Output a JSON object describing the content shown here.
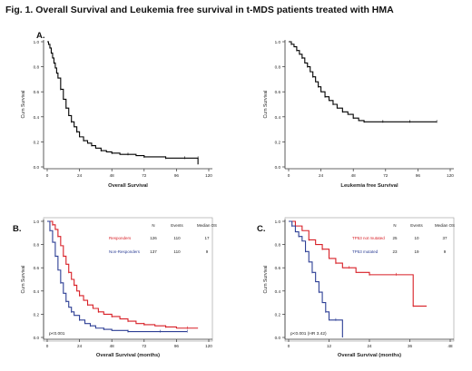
{
  "figure": {
    "title": "Fig. 1. Overall Survival and Leukemia free survival in t-MDS patients treated with HMA",
    "panel_letters": [
      "A.",
      "B.",
      "C."
    ]
  },
  "chart_data": [
    {
      "id": "A-left",
      "type": "line",
      "ylabel": "Cum Survival",
      "xlabel": "Overall Survival",
      "xlim": [
        0,
        120
      ],
      "ylim": [
        0,
        1.0
      ],
      "xticks": [
        0,
        24,
        48,
        72,
        96,
        120
      ],
      "yticks": [
        0.0,
        0.2,
        0.4,
        0.6,
        0.8,
        1.0
      ],
      "series": [
        {
          "color": "#000000",
          "x": [
            0,
            1,
            2,
            3,
            4,
            5,
            6,
            7,
            8,
            10,
            12,
            14,
            16,
            18,
            20,
            22,
            24,
            27,
            30,
            33,
            36,
            40,
            44,
            48,
            54,
            60,
            66,
            72,
            80,
            88,
            96,
            102,
            106,
            112,
            112
          ],
          "y": [
            1.0,
            0.98,
            0.95,
            0.91,
            0.87,
            0.83,
            0.79,
            0.75,
            0.71,
            0.62,
            0.54,
            0.47,
            0.41,
            0.36,
            0.32,
            0.28,
            0.24,
            0.21,
            0.19,
            0.17,
            0.15,
            0.13,
            0.12,
            0.11,
            0.1,
            0.1,
            0.09,
            0.08,
            0.08,
            0.07,
            0.07,
            0.07,
            0.07,
            0.07,
            0.02
          ]
        }
      ]
    },
    {
      "id": "A-right",
      "type": "line",
      "ylabel": "Cum Survival",
      "xlabel": "Leukemia free Survival",
      "xlim": [
        0,
        120
      ],
      "ylim": [
        0,
        1.0
      ],
      "xticks": [
        0,
        24,
        48,
        72,
        96,
        120
      ],
      "yticks": [
        0.0,
        0.2,
        0.4,
        0.6,
        0.8,
        1.0
      ],
      "series": [
        {
          "color": "#000000",
          "x": [
            0,
            2,
            4,
            6,
            8,
            10,
            12,
            14,
            16,
            18,
            20,
            22,
            24,
            27,
            30,
            33,
            36,
            40,
            44,
            48,
            52,
            56,
            60,
            70,
            80,
            90,
            100,
            110
          ],
          "y": [
            1.0,
            0.98,
            0.96,
            0.93,
            0.9,
            0.87,
            0.83,
            0.8,
            0.76,
            0.72,
            0.68,
            0.64,
            0.6,
            0.56,
            0.53,
            0.5,
            0.47,
            0.44,
            0.42,
            0.39,
            0.37,
            0.36,
            0.36,
            0.36,
            0.36,
            0.36,
            0.36,
            0.36
          ]
        }
      ]
    },
    {
      "id": "B",
      "type": "line",
      "ylabel": "Cum Survival",
      "xlabel": "Overall Survival (months)",
      "xlim": [
        0,
        120
      ],
      "ylim": [
        0,
        1.0
      ],
      "xticks": [
        0,
        24,
        48,
        72,
        96,
        120
      ],
      "yticks": [
        0.0,
        0.2,
        0.4,
        0.6,
        0.8,
        1.0
      ],
      "annotation": "p<0.001",
      "legend_header": [
        "N",
        "Events",
        "Median OS"
      ],
      "series": [
        {
          "name": "Responders",
          "color": "#d81f26",
          "N": "126",
          "Events": "110",
          "Median": "17",
          "x": [
            0,
            4,
            6,
            8,
            10,
            12,
            14,
            16,
            18,
            20,
            22,
            24,
            27,
            30,
            34,
            38,
            42,
            48,
            54,
            60,
            66,
            72,
            80,
            88,
            96,
            104,
            112
          ],
          "y": [
            1.0,
            0.97,
            0.93,
            0.87,
            0.79,
            0.7,
            0.63,
            0.56,
            0.5,
            0.45,
            0.4,
            0.36,
            0.32,
            0.28,
            0.25,
            0.22,
            0.2,
            0.18,
            0.16,
            0.14,
            0.12,
            0.11,
            0.1,
            0.09,
            0.08,
            0.08,
            0.08
          ]
        },
        {
          "name": "Non-Responders",
          "color": "#2d3f95",
          "N": "137",
          "Events": "110",
          "Median": "9",
          "x": [
            0,
            2,
            4,
            6,
            8,
            10,
            12,
            14,
            16,
            18,
            20,
            24,
            28,
            32,
            36,
            42,
            48,
            60,
            72,
            84,
            96,
            104
          ],
          "y": [
            1.0,
            0.92,
            0.82,
            0.7,
            0.58,
            0.47,
            0.38,
            0.31,
            0.26,
            0.22,
            0.19,
            0.15,
            0.12,
            0.1,
            0.08,
            0.07,
            0.06,
            0.05,
            0.05,
            0.05,
            0.05,
            0.05
          ]
        }
      ]
    },
    {
      "id": "C",
      "type": "line",
      "ylabel": "Cum Survival",
      "xlabel": "Overall Survival (months)",
      "xlim": [
        0,
        48
      ],
      "ylim": [
        0,
        1.0
      ],
      "xticks": [
        0,
        12,
        24,
        36,
        48
      ],
      "yticks": [
        0.0,
        0.2,
        0.4,
        0.6,
        0.8,
        1.0
      ],
      "annotation": "p<0.001 (HR 3.42)",
      "legend_header": [
        "N",
        "Events",
        "Median OS"
      ],
      "series": [
        {
          "name": "TP53 not mutated",
          "color": "#d81f26",
          "N": "25",
          "Events": "10",
          "Median": "37",
          "x": [
            0,
            2,
            4,
            6,
            8,
            10,
            12,
            14,
            16,
            18,
            20,
            24,
            28,
            32,
            35,
            37,
            41
          ],
          "y": [
            1.0,
            0.96,
            0.92,
            0.84,
            0.8,
            0.76,
            0.68,
            0.64,
            0.6,
            0.6,
            0.56,
            0.54,
            0.54,
            0.54,
            0.54,
            0.27,
            0.27
          ]
        },
        {
          "name": "TP53 mutated",
          "color": "#2d3f95",
          "N": "23",
          "Events": "19",
          "Median": "9",
          "x": [
            0,
            1,
            2,
            3,
            4,
            5,
            6,
            7,
            8,
            9,
            10,
            11,
            12,
            14,
            16
          ],
          "y": [
            1.0,
            0.96,
            0.91,
            0.87,
            0.83,
            0.74,
            0.65,
            0.56,
            0.48,
            0.39,
            0.3,
            0.22,
            0.15,
            0.15,
            0.0
          ]
        }
      ]
    }
  ]
}
